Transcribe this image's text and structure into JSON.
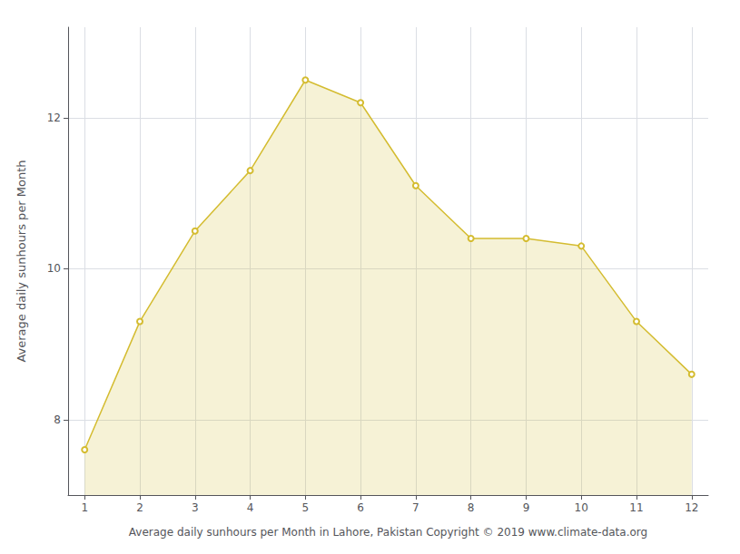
{
  "chart_data": {
    "type": "area",
    "x": [
      1,
      2,
      3,
      4,
      5,
      6,
      7,
      8,
      9,
      10,
      11,
      12
    ],
    "values": [
      7.6,
      9.3,
      10.5,
      11.3,
      12.5,
      12.2,
      11.1,
      10.4,
      10.4,
      10.3,
      9.3,
      8.6
    ],
    "color": "#D4BC30",
    "marker": "circle",
    "xlabel": "Average daily sunhours per Month in Lahore, Pakistan Copyright © 2019 www.climate-data.org",
    "ylabel": "Average daily sunhours per Month",
    "xlim": [
      0.7,
      12.3
    ],
    "ylim": [
      7.0,
      13.2
    ],
    "xticks": [
      1,
      2,
      3,
      4,
      5,
      6,
      7,
      8,
      9,
      10,
      11,
      12
    ],
    "yticks": [
      8,
      10,
      12
    ],
    "grid": true
  }
}
